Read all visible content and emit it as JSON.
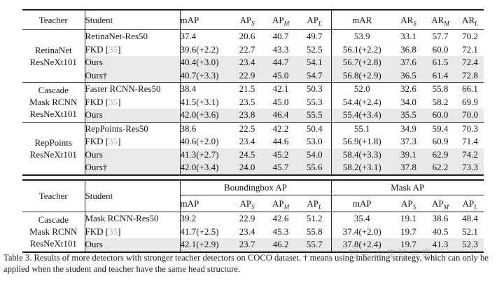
{
  "colors": {
    "citation_green": "#8fc98f",
    "row_shade": "#e9e9e9",
    "rule_black": "#1a1a1a"
  },
  "table1": {
    "header": {
      "teacher": "Teacher",
      "student": "Student",
      "metrics": [
        {
          "base": "mAP"
        },
        {
          "base": "AP",
          "sub": "S"
        },
        {
          "base": "AP",
          "sub": "M"
        },
        {
          "base": "AP",
          "sub": "L"
        },
        {
          "base": "mAR"
        },
        {
          "base": "AR",
          "sub": "S"
        },
        {
          "base": "AR",
          "sub": "M"
        },
        {
          "base": "AR",
          "sub": "L"
        }
      ]
    },
    "blocks": [
      {
        "teacher_lines": [
          "RetinaNet",
          "ResNeXt101"
        ],
        "rows": [
          {
            "student": "RetinaNet-Res50",
            "cite": "",
            "shaded": false,
            "values": [
              "37.4",
              "20.6",
              "40.7",
              "49.7",
              "53.9",
              "33.1",
              "57.7",
              "70.2"
            ]
          },
          {
            "student": "FKD",
            "cite": "35",
            "shaded": false,
            "values": [
              "39.6(+2.2)",
              "22.7",
              "43.3",
              "52.5",
              "56.1(+2.2)",
              "36.8",
              "60.0",
              "72.1"
            ]
          },
          {
            "student": "Ours",
            "cite": "",
            "shaded": true,
            "values": [
              "40.4(+3.0)",
              "23.4",
              "44.7",
              "54.1",
              "56.7(+2.8)",
              "37.6",
              "61.5",
              "72.4"
            ]
          },
          {
            "student": "Ours†",
            "cite": "",
            "shaded": true,
            "values": [
              "40.7(+3.3)",
              "22.9",
              "45.0",
              "54.7",
              "56.8(+2.9)",
              "36.5",
              "61.4",
              "72.8"
            ]
          }
        ]
      },
      {
        "teacher_lines": [
          "Cascade",
          "Mask RCNN",
          "ResNeXt101"
        ],
        "rows": [
          {
            "student": "Faster RCNN-Res50",
            "cite": "",
            "shaded": false,
            "values": [
              "38.4",
              "21.5",
              "42.1",
              "50.3",
              "52.0",
              "32.6",
              "55.8",
              "66.1"
            ]
          },
          {
            "student": "FKD",
            "cite": "35",
            "shaded": false,
            "values": [
              "41.5(+3.1)",
              "23.5",
              "45.0",
              "55.3",
              "54.4(+2.4)",
              "34.0",
              "58.2",
              "69.9"
            ]
          },
          {
            "student": "Ours",
            "cite": "",
            "shaded": true,
            "values": [
              "42.0(+3.6)",
              "23.8",
              "46.4",
              "55.5",
              "55.4(+3.4)",
              "35.5",
              "60.0",
              "70.0"
            ]
          }
        ]
      },
      {
        "teacher_lines": [
          "RepPoints",
          "ResNeXt101"
        ],
        "rows": [
          {
            "student": "RepPoints-Res50",
            "cite": "",
            "shaded": false,
            "values": [
              "38.6",
              "22.5",
              "42.2",
              "50.4",
              "55.1",
              "34.9",
              "59.4",
              "70.3"
            ]
          },
          {
            "student": "FKD",
            "cite": "35",
            "shaded": false,
            "values": [
              "40.6(+2.0)",
              "23.4",
              "44.6",
              "53.0",
              "56.9(+1.8)",
              "37.3",
              "60.9",
              "71.4"
            ]
          },
          {
            "student": "Ours",
            "cite": "",
            "shaded": true,
            "values": [
              "41.3(+2.7)",
              "24.5",
              "45.2",
              "54.0",
              "58.4(+3.3)",
              "39.1",
              "62.9",
              "74.2"
            ]
          },
          {
            "student": "Ours†",
            "cite": "",
            "shaded": true,
            "values": [
              "42.0(+3.4)",
              "24.0",
              "45.7",
              "55.6",
              "58.2(+3.1)",
              "37.8",
              "62.2",
              "73.3"
            ]
          }
        ]
      }
    ]
  },
  "table2": {
    "header": {
      "teacher": "Teacher",
      "student": "Student",
      "groups": [
        {
          "label": "Boundingbox AP"
        },
        {
          "label": "Mask AP"
        }
      ],
      "metrics": [
        {
          "base": "mAP"
        },
        {
          "base": "AP",
          "sub": "S"
        },
        {
          "base": "AP",
          "sub": "M"
        },
        {
          "base": "AP",
          "sub": "L"
        },
        {
          "base": "mAP"
        },
        {
          "base": "AP",
          "sub": "S"
        },
        {
          "base": "AP",
          "sub": "M"
        },
        {
          "base": "AP",
          "sub": "L"
        }
      ]
    },
    "blocks": [
      {
        "teacher_lines": [
          "Cascade",
          "Mask RCNN",
          "ResNeXt101"
        ],
        "rows": [
          {
            "student": "Mask RCNN-Res50",
            "cite": "",
            "shaded": false,
            "values": [
              "39.2",
              "22.9",
              "42.6",
              "51.2",
              "35.4",
              "19.1",
              "38.6",
              "48.4"
            ]
          },
          {
            "student": "FKD",
            "cite": "35",
            "shaded": false,
            "values": [
              "41.7(+2.5)",
              "23.4",
              "45.3",
              "55.8",
              "37.4(+2.0)",
              "19.7",
              "40.5",
              "52.1"
            ]
          },
          {
            "student": "Ours",
            "cite": "",
            "shaded": true,
            "values": [
              "42.1(+2.9)",
              "23.7",
              "46.2",
              "55.7",
              "37.8(+2.4)",
              "19.7",
              "41.3",
              "52.3"
            ]
          }
        ]
      }
    ]
  },
  "caption": {
    "text": "Table 3. Results of more detectors with stronger teacher detectors on COCO dataset. † means using inheriting strategy, which can only be applied when the student and teacher have the same head structure."
  },
  "watermark": {
    "text": "知乎 @集智书童"
  }
}
